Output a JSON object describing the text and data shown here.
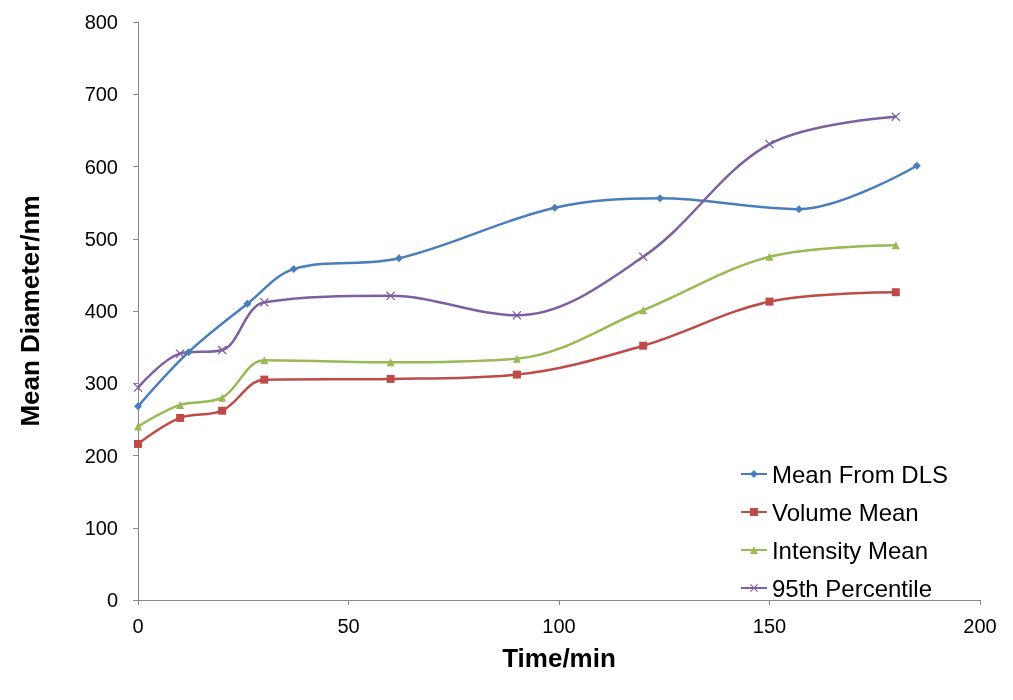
{
  "chart_data": {
    "type": "line",
    "xlabel": "Time/min",
    "ylabel": "Mean Diameter/nm",
    "xlim": [
      0,
      200
    ],
    "xticks": [
      0,
      50,
      100,
      150,
      200
    ],
    "ylim": [
      0,
      800
    ],
    "yticks": [
      0,
      100,
      200,
      300,
      400,
      500,
      600,
      700,
      800
    ],
    "grid": false,
    "legend": "bottom right",
    "line_style": "solid",
    "series": [
      {
        "name": "Mean From DLS",
        "color": "#4a7ebb",
        "marker": "diamond",
        "x": [
          0,
          12,
          26,
          37,
          62,
          99,
          124,
          157,
          185
        ],
        "values": [
          268,
          343,
          410,
          458,
          473,
          543,
          556,
          541,
          601
        ]
      },
      {
        "name": "Volume Mean",
        "color": "#be4b48",
        "marker": "square",
        "x": [
          0,
          10,
          20,
          30,
          60,
          90,
          120,
          150,
          180
        ],
        "values": [
          216,
          252,
          262,
          305,
          306,
          312,
          352,
          413,
          426
        ]
      },
      {
        "name": "Intensity Mean",
        "color": "#98b954",
        "marker": "triangle",
        "x": [
          0,
          10,
          20,
          30,
          60,
          90,
          120,
          150,
          180
        ],
        "values": [
          240,
          270,
          280,
          332,
          329,
          334,
          401,
          475,
          491
        ]
      },
      {
        "name": "95th Percentile",
        "color": "#7d60a0",
        "marker": "cross",
        "x": [
          0,
          10,
          20,
          30,
          60,
          90,
          120,
          150,
          180
        ],
        "values": [
          294,
          341,
          346,
          412,
          421,
          394,
          475,
          631,
          669
        ]
      }
    ]
  }
}
